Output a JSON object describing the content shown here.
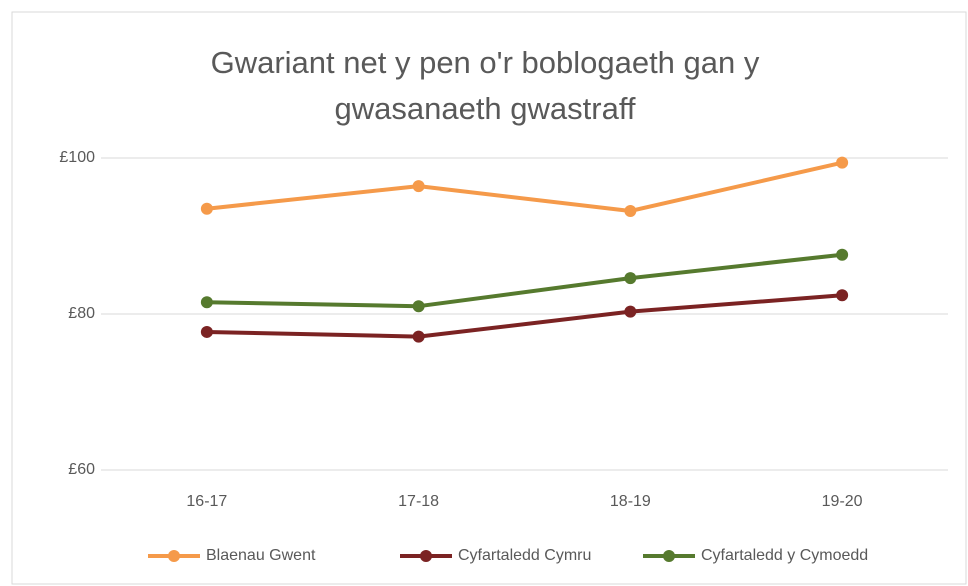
{
  "chart_data": {
    "type": "line",
    "title": "Gwariant net y pen o'r boblogaeth gan y gwasanaeth gwastraff",
    "categories": [
      "16-17",
      "17-18",
      "18-19",
      "19-20"
    ],
    "series": [
      {
        "name": "Blaenau Gwent",
        "color": "#f59a4a",
        "values": [
          93.5,
          96.4,
          93.2,
          99.4
        ]
      },
      {
        "name": "Cyfartaledd Cymru",
        "color": "#7b2323",
        "values": [
          77.7,
          77.1,
          80.3,
          82.4
        ]
      },
      {
        "name": "Cyfartaledd y Cymoedd",
        "color": "#567a2e",
        "values": [
          81.5,
          81.0,
          84.6,
          87.6
        ]
      }
    ],
    "ylim": [
      60,
      100
    ],
    "yticks": [
      {
        "value": 60,
        "label": "£60"
      },
      {
        "value": 80,
        "label": "£80"
      },
      {
        "value": 100,
        "label": "£100"
      }
    ],
    "grid": true,
    "legend": "bottom"
  }
}
